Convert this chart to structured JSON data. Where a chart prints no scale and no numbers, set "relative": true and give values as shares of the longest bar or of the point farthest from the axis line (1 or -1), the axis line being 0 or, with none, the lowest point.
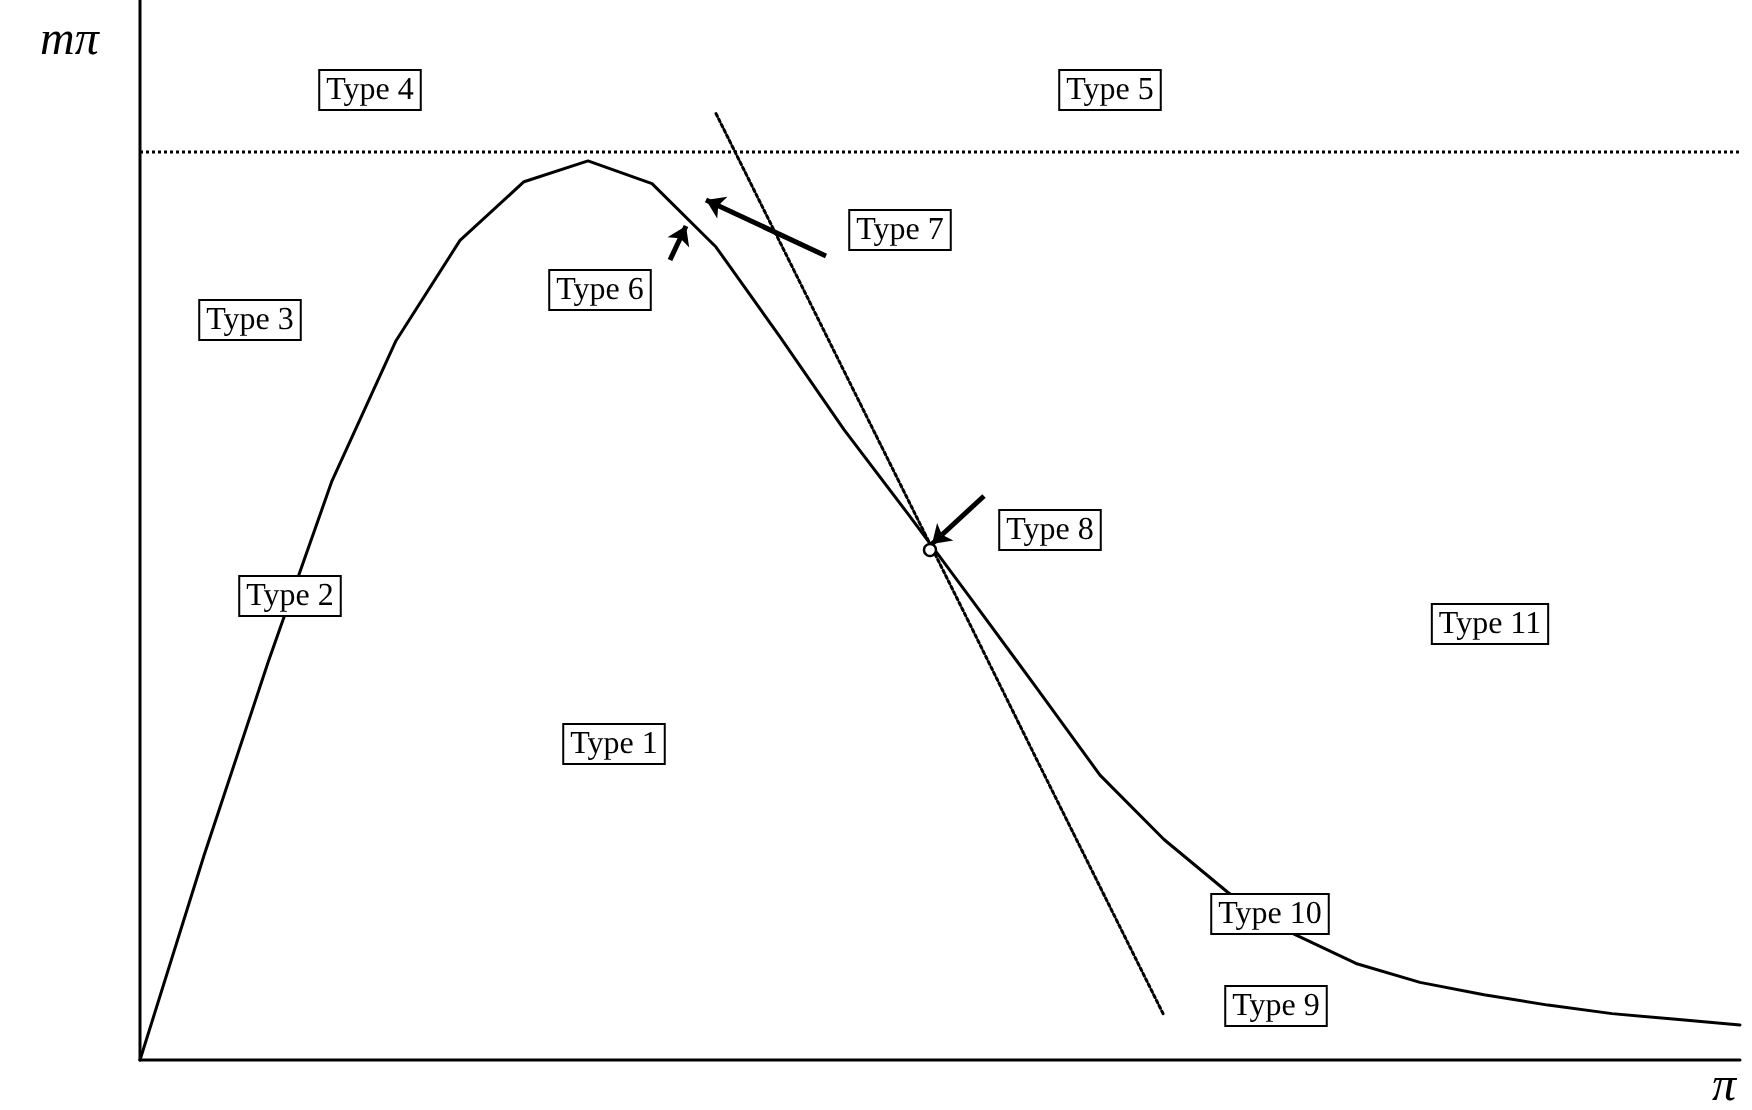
{
  "chart_data": {
    "type": "line",
    "relative": true,
    "xlabel": "π",
    "ylabel": "mπ",
    "tick_labels": false,
    "categories": [
      null,
      null,
      null,
      null,
      null,
      null,
      null,
      null,
      null,
      null,
      null,
      null,
      null,
      null,
      null,
      null,
      null,
      null,
      null,
      null,
      null,
      null,
      null,
      null,
      null,
      null
    ],
    "series": [
      {
        "color": "#000000",
        "line_style": "solid",
        "values": [
          0,
          0.216,
          0.42,
          0.612,
          0.76,
          0.866,
          0.928,
          0.95,
          0.926,
          0.859,
          0.764,
          0.666,
          0.577,
          0.486,
          0.394,
          0.301,
          0.233,
          0.177,
          0.134,
          0.102,
          0.082,
          0.069,
          0.058,
          0.049,
          0.043,
          0.037
        ]
      },
      {
        "color": "#000000",
        "line_style": "dotted",
        "values": [
          null,
          null,
          null,
          null,
          null,
          null,
          null,
          null,
          null,
          1,
          0.864,
          0.728,
          0.592,
          0.456,
          0.319,
          0.183,
          0.047,
          null,
          null,
          null,
          null,
          null,
          null,
          null,
          null,
          null
        ]
      }
    ],
    "ref_lines": [
      {
        "axis": "y",
        "value": 0.959,
        "color": "#000000",
        "line_style": "dotted"
      }
    ],
    "annotations": [
      "Type 1",
      "Type 2",
      "Type 3",
      "Type 4",
      "Type 5",
      "Type 6",
      "Type 7",
      "Type 8",
      "Type 9",
      "Type 10",
      "Type 11"
    ]
  }
}
